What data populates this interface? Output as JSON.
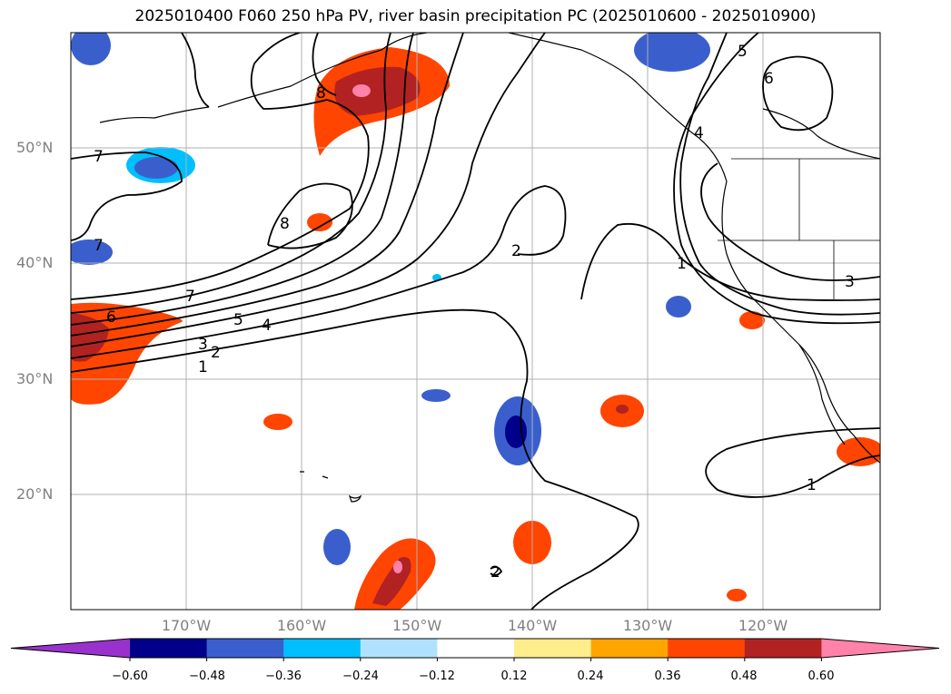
{
  "title": "2025010400 F060 250 hPa PV, river basin precipitation PC (2025010600 - 2025010900)",
  "lat_labels": [
    "50°N",
    "40°N",
    "30°N",
    "20°N"
  ],
  "lon_labels": [
    "170°W",
    "160°W",
    "150°W",
    "140°W",
    "130°W",
    "120°W"
  ],
  "pv_contour_labels": [
    "1",
    "2",
    "3",
    "4",
    "5",
    "6",
    "7",
    "8"
  ],
  "colorbar": {
    "tick_labels": [
      "−0.60",
      "−0.48",
      "−0.36",
      "−0.24",
      "−0.12",
      "0.12",
      "0.24",
      "0.36",
      "0.48",
      "0.60"
    ],
    "colors": [
      "#9932cc",
      "#00008b",
      "#3a5fcd",
      "#00bfff",
      "#b0e2ff",
      "#ffffff",
      "#ffec8b",
      "#ffa500",
      "#ff4500",
      "#b22222",
      "#ff82ab"
    ]
  },
  "colors": {
    "contour": "#000000",
    "grid": "#b0b0b0",
    "coast": "#000000",
    "axis_label": "#808080"
  }
}
